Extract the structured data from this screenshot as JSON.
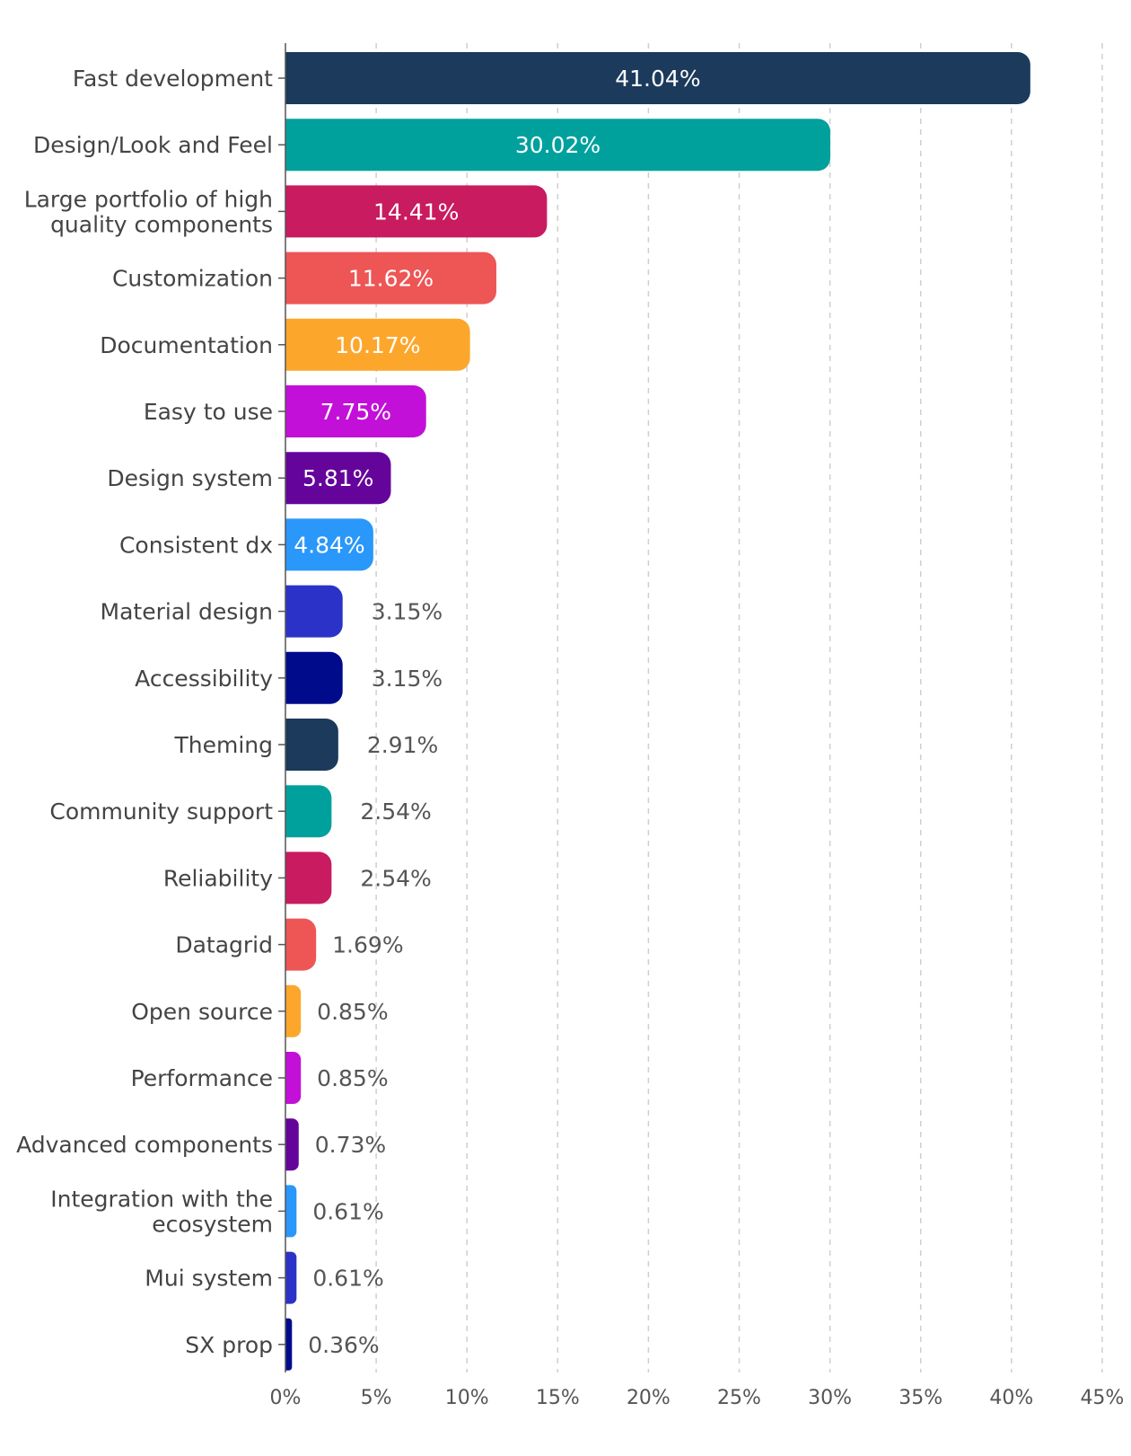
{
  "chart_data": {
    "type": "bar",
    "orientation": "horizontal",
    "categories": [
      "Fast development",
      "Design/Look and Feel",
      "Large portfolio of high quality components",
      "Customization",
      "Documentation",
      "Easy to use",
      "Design system",
      "Consistent dx",
      "Material design",
      "Accessibility",
      "Theming",
      "Community support",
      "Reliability",
      "Datagrid",
      "Open source",
      "Performance",
      "Advanced components",
      "Integration with the ecosystem",
      "Mui system",
      "SX prop"
    ],
    "category_lines": [
      [
        "Fast development"
      ],
      [
        "Design/Look and Feel"
      ],
      [
        "Large portfolio of high",
        "quality components"
      ],
      [
        "Customization"
      ],
      [
        "Documentation"
      ],
      [
        "Easy to use"
      ],
      [
        "Design system"
      ],
      [
        "Consistent dx"
      ],
      [
        "Material design"
      ],
      [
        "Accessibility"
      ],
      [
        "Theming"
      ],
      [
        "Community support"
      ],
      [
        "Reliability"
      ],
      [
        "Datagrid"
      ],
      [
        "Open source"
      ],
      [
        "Performance"
      ],
      [
        "Advanced components"
      ],
      [
        "Integration with the",
        "ecosystem"
      ],
      [
        "Mui system"
      ],
      [
        "SX prop"
      ]
    ],
    "values": [
      41.04,
      30.02,
      14.41,
      11.62,
      10.17,
      7.75,
      5.81,
      4.84,
      3.15,
      3.15,
      2.91,
      2.54,
      2.54,
      1.69,
      0.85,
      0.85,
      0.73,
      0.61,
      0.61,
      0.36
    ],
    "value_labels": [
      "41.04%",
      "30.02%",
      "14.41%",
      "11.62%",
      "10.17%",
      "7.75%",
      "5.81%",
      "4.84%",
      "3.15%",
      "3.15%",
      "2.91%",
      "2.54%",
      "2.54%",
      "1.69%",
      "0.85%",
      "0.85%",
      "0.73%",
      "0.61%",
      "0.61%",
      "0.36%"
    ],
    "colors": [
      "#1b3a5c",
      "#00a19d",
      "#c91b5f",
      "#ee5555",
      "#fca72c",
      "#c210d8",
      "#65049b",
      "#2a97fa",
      "#2b32c8",
      "#000b8c",
      "#1b3a5c",
      "#00a19d",
      "#c91b5f",
      "#ee5555",
      "#fca72c",
      "#c210d8",
      "#65049b",
      "#2a97fa",
      "#2b32c8",
      "#000b8c"
    ],
    "xlim": [
      0,
      45
    ],
    "x_ticks": [
      0,
      5,
      10,
      15,
      20,
      25,
      30,
      35,
      40,
      45
    ],
    "x_tick_labels": [
      "0%",
      "5%",
      "10%",
      "15%",
      "20%",
      "25%",
      "30%",
      "35%",
      "40%",
      "45%"
    ],
    "grid": "vertical dashed",
    "title": "",
    "xlabel": "",
    "ylabel": ""
  }
}
